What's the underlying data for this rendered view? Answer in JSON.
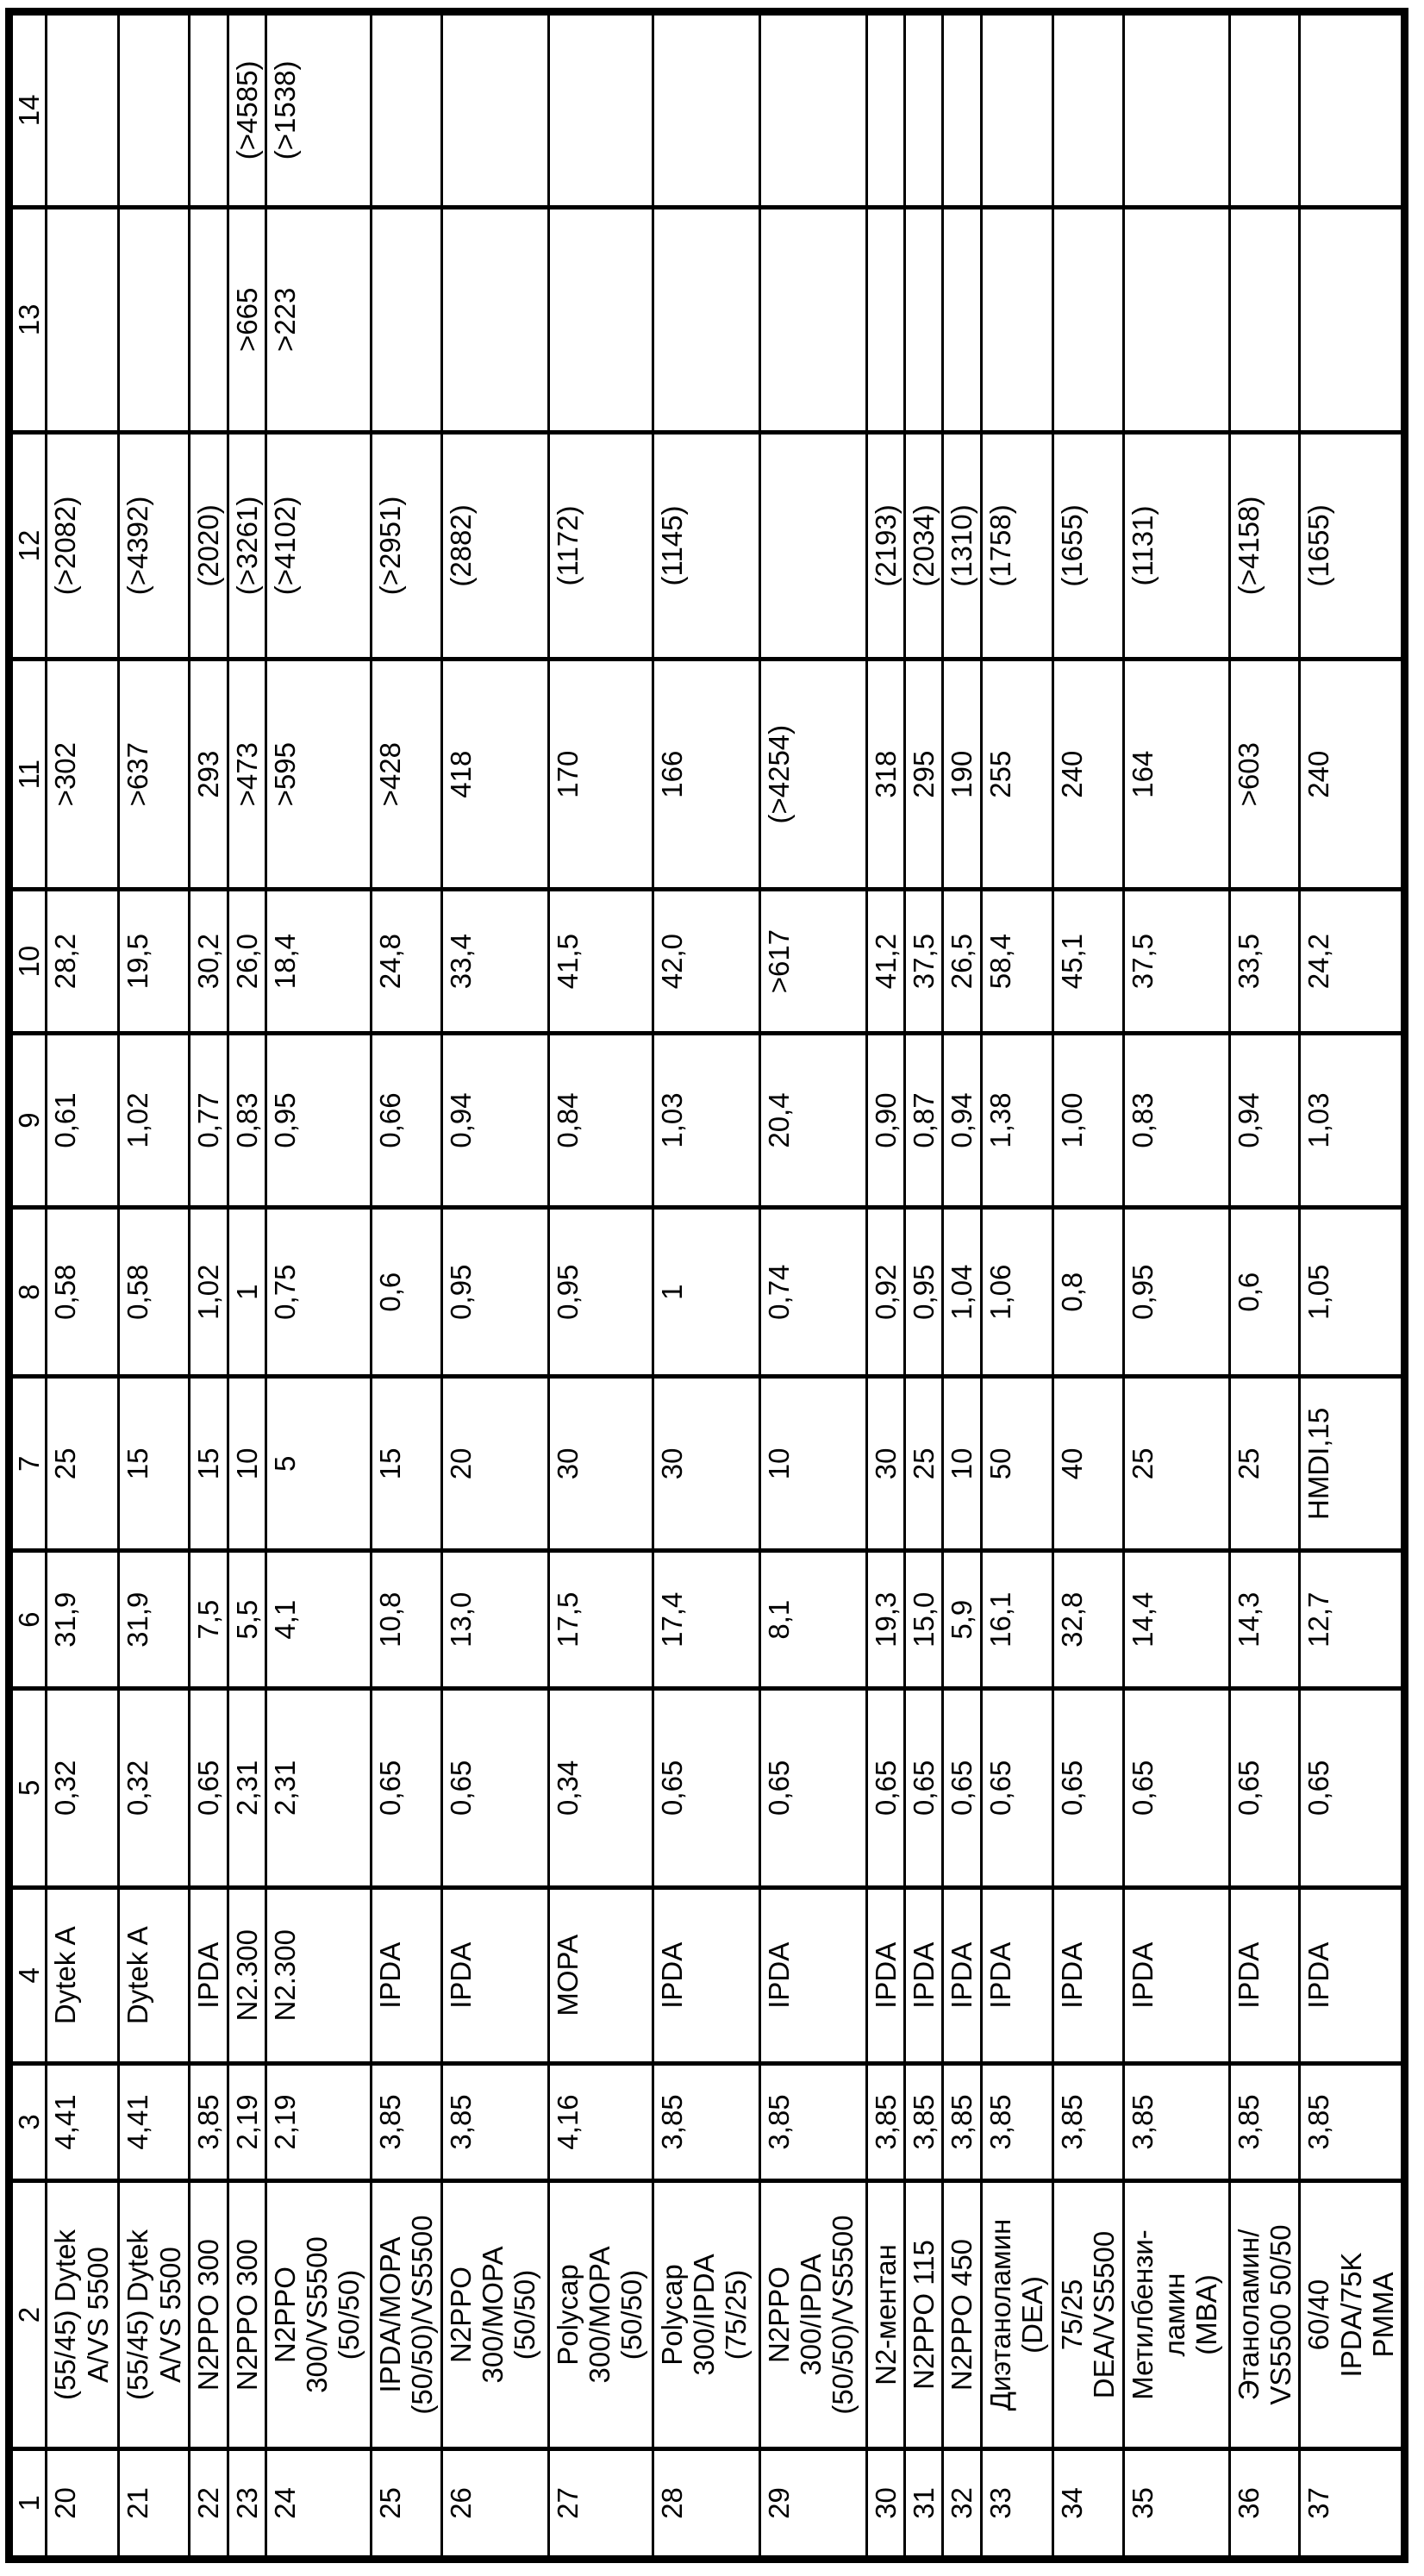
{
  "colors": {
    "background": "#ffffff",
    "border": "#000000",
    "text": "#000000"
  },
  "table": {
    "headers": [
      "1",
      "2",
      "3",
      "4",
      "5",
      "6",
      "7",
      "8",
      "9",
      "10",
      "11",
      "12",
      "13",
      "14"
    ],
    "rows": [
      [
        "20",
        "(55/45) Dytek\nA/VS 5500",
        "4,41",
        "Dytek A",
        "0,32",
        "31,9",
        "25",
        "0,58",
        "0,61",
        "28,2",
        ">302",
        "(>2082)",
        "",
        ""
      ],
      [
        "21",
        "(55/45) Dytek\nA/VS 5500",
        "4,41",
        "Dytek A",
        "0,32",
        "31,9",
        "15",
        "0,58",
        "1,02",
        "19,5",
        ">637",
        "(>4392)",
        "",
        ""
      ],
      [
        "22",
        "N2PPO 300",
        "3,85",
        "IPDA",
        "0,65",
        "7,5",
        "15",
        "1,02",
        "0,77",
        "30,2",
        "293",
        "(2020)",
        "",
        ""
      ],
      [
        "23",
        "N2PPO 300",
        "2,19",
        "N2.300",
        "2,31",
        "5,5",
        "10",
        "1",
        "0,83",
        "26,0",
        ">473",
        "(>3261)",
        ">665",
        "(>4585)"
      ],
      [
        "24",
        "N2PPO\n300/VS5500\n(50/50)",
        "2,19",
        "N2.300",
        "2,31",
        "4,1",
        "5",
        "0,75",
        "0,95",
        "18,4",
        ">595",
        "(>4102)",
        ">223",
        "(>1538)"
      ],
      [
        "25",
        "IPDA/MOPA\n(50/50)/VS5500",
        "3,85",
        "IPDA",
        "0,65",
        "10,8",
        "15",
        "0,6",
        "0,66",
        "24,8",
        ">428",
        "(>2951)",
        "",
        ""
      ],
      [
        "26",
        "N2PPO\n300/MOPA\n(50/50)",
        "3,85",
        "IPDA",
        "0,65",
        "13,0",
        "20",
        "0,95",
        "0,94",
        "33,4",
        "418",
        "(2882)",
        "",
        ""
      ],
      [
        "27",
        "Polycap\n300/MOPA\n(50/50)",
        "4,16",
        "MOPA",
        "0,34",
        "17,5",
        "30",
        "0,95",
        "0,84",
        "41,5",
        "170",
        "(1172)",
        "",
        ""
      ],
      [
        "28",
        "Polycap\n300/IPDA\n(75/25)",
        "3,85",
        "IPDA",
        "0,65",
        "17,4",
        "30",
        "1",
        "1,03",
        "42,0",
        "166",
        "(1145)",
        "",
        ""
      ],
      [
        "29",
        "N2PPO\n300/IPDA\n(50/50)/VS5500",
        "3,85",
        "IPDA",
        "0,65",
        "8,1",
        "10",
        "0,74",
        "20,4",
        ">617",
        "(>4254)",
        "",
        "",
        ""
      ],
      [
        "30",
        "N2-ментан",
        "3,85",
        "IPDA",
        "0,65",
        "19,3",
        "30",
        "0,92",
        "0,90",
        "41,2",
        "318",
        "(2193)",
        "",
        ""
      ],
      [
        "31",
        "N2PPO 115",
        "3,85",
        "IPDA",
        "0,65",
        "15,0",
        "25",
        "0,95",
        "0,87",
        "37,5",
        "295",
        "(2034)",
        "",
        ""
      ],
      [
        "32",
        "N2PPO 450",
        "3,85",
        "IPDA",
        "0,65",
        "5,9",
        "10",
        "1,04",
        "0,94",
        "26,5",
        "190",
        "(1310)",
        "",
        ""
      ],
      [
        "33",
        "Диэтаноламин\n(DEA)",
        "3,85",
        "IPDA",
        "0,65",
        "16,1",
        "50",
        "1,06",
        "1,38",
        "58,4",
        "255",
        "(1758)",
        "",
        ""
      ],
      [
        "34",
        "75/25\nDEA/VS5500",
        "3,85",
        "IPDA",
        "0,65",
        "32,8",
        "40",
        "0,8",
        "1,00",
        "45,1",
        "240",
        "(1655)",
        "",
        ""
      ],
      [
        "35",
        "Метилбензи-\nламин\n(MBA)",
        "3,85",
        "IPDA",
        "0,65",
        "14,4",
        "25",
        "0,95",
        "0,83",
        "37,5",
        "164",
        "(1131)",
        "",
        ""
      ],
      [
        "36",
        "Этаноламин/\nVS5500 50/50",
        "3,85",
        "IPDA",
        "0,65",
        "14,3",
        "25",
        "0,6",
        "0,94",
        "33,5",
        ">603",
        "(>4158)",
        "",
        ""
      ],
      [
        "37",
        "60/40\nIPDA/75K\nPMMA",
        "3,85",
        "IPDA",
        "0,65",
        "12,7",
        "HMDI,15",
        "1,05",
        "1,03",
        "24,2",
        "240",
        "(1655)",
        "",
        ""
      ]
    ]
  }
}
